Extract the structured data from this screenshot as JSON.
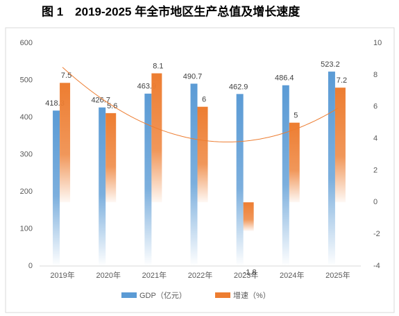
{
  "chart_data": {
    "type": "bar",
    "title": "图 1　2019-2025 年全市地区生产总值及增长速度",
    "categories": [
      "2019年",
      "2020年",
      "2021年",
      "2022年",
      "2023年",
      "2024年",
      "2025年"
    ],
    "series": [
      {
        "name": "GDP（亿元）",
        "color": "#5b9bd5",
        "values": [
          418.3,
          426.7,
          463.9,
          490.7,
          462.9,
          486.4,
          523.2
        ]
      },
      {
        "name": "增速（%）",
        "color": "#ed7d31",
        "axis": "y2",
        "values": [
          7.5,
          5.6,
          8.1,
          6.0,
          -1.8,
          5.0,
          7.2
        ]
      }
    ],
    "ylim": [
      0,
      600
    ],
    "yticks": [
      0,
      100,
      200,
      300,
      400,
      500,
      600
    ],
    "y2lim": [
      -4,
      10
    ],
    "y2ticks": [
      -4,
      -2,
      0,
      2,
      4,
      6,
      8,
      10
    ],
    "trendline": true
  }
}
